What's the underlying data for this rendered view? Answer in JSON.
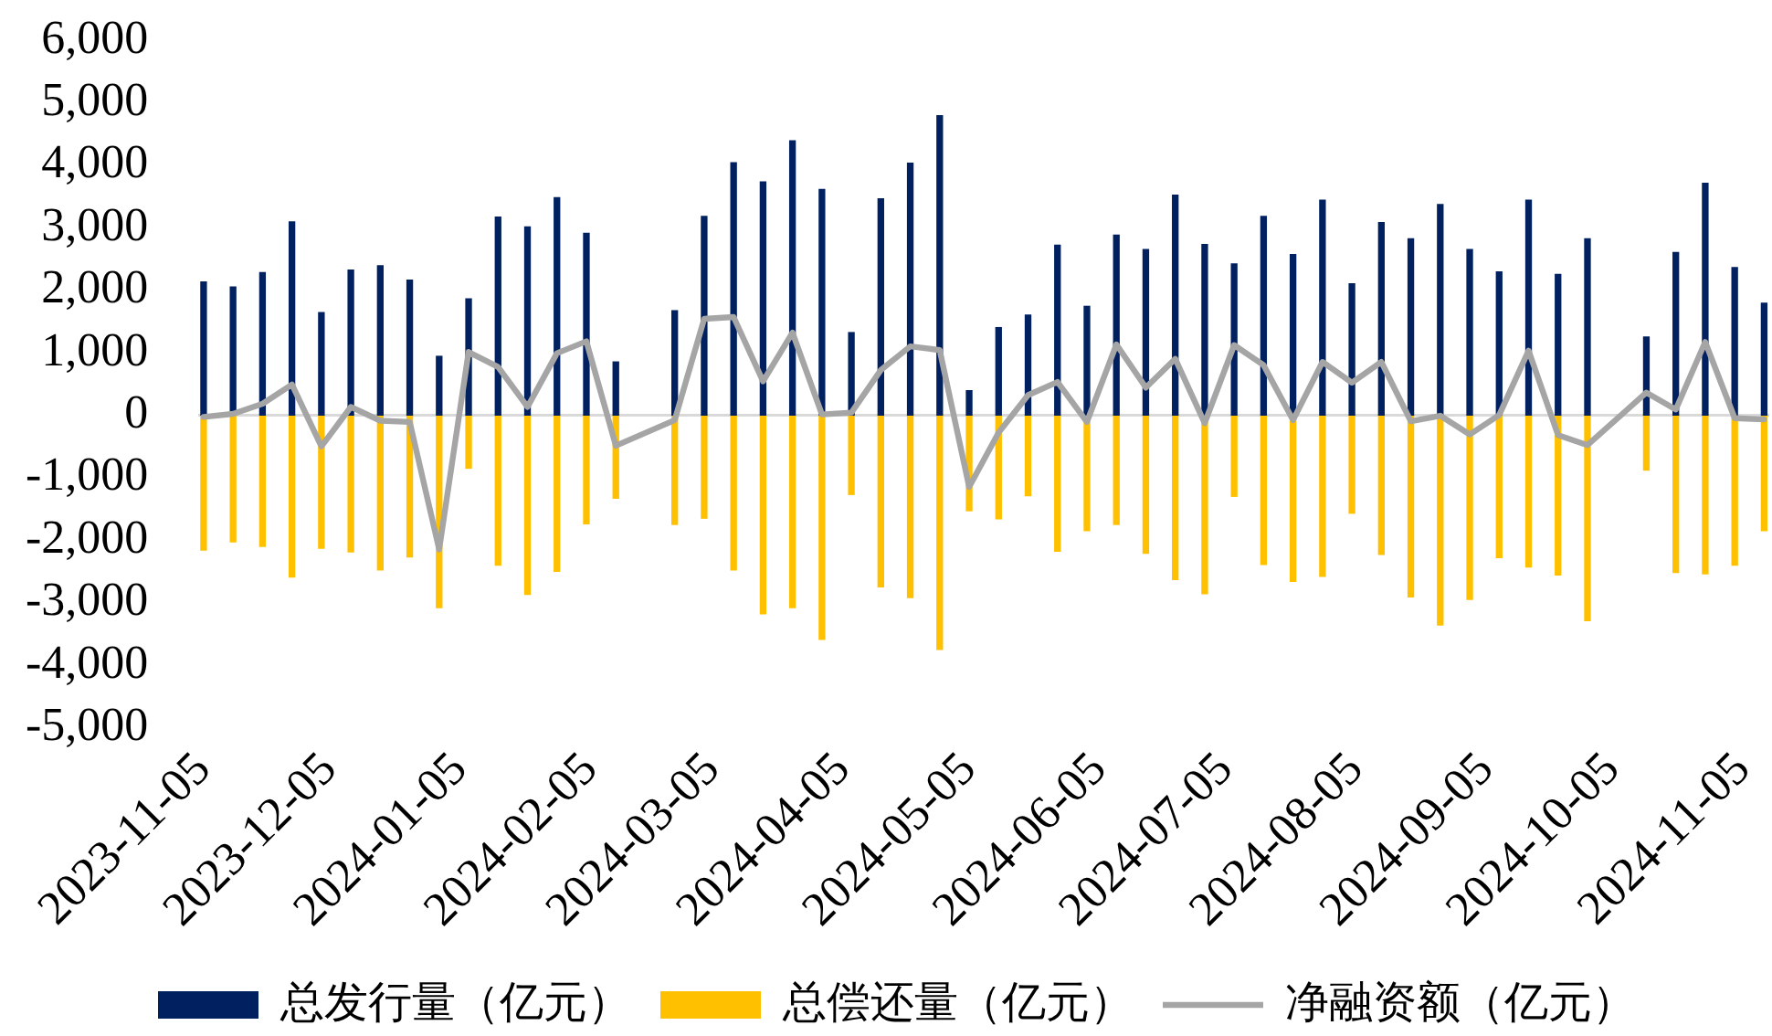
{
  "chart_data": {
    "type": "bar",
    "stacked": true,
    "x": [
      "2023-11-05",
      "2023-11-12",
      "2023-11-19",
      "2023-11-26",
      "2023-12-03",
      "2023-12-10",
      "2023-12-17",
      "2023-12-24",
      "2023-12-31",
      "2024-01-07",
      "2024-01-14",
      "2024-01-21",
      "2024-01-28",
      "2024-02-04",
      "2024-02-11",
      "2024-02-25",
      "2024-03-03",
      "2024-03-10",
      "2024-03-17",
      "2024-03-24",
      "2024-03-31",
      "2024-04-07",
      "2024-04-14",
      "2024-04-21",
      "2024-04-28",
      "2024-05-05",
      "2024-05-12",
      "2024-05-19",
      "2024-05-26",
      "2024-06-02",
      "2024-06-09",
      "2024-06-16",
      "2024-06-23",
      "2024-06-30",
      "2024-07-07",
      "2024-07-14",
      "2024-07-21",
      "2024-07-28",
      "2024-08-04",
      "2024-08-11",
      "2024-08-18",
      "2024-08-25",
      "2024-09-01",
      "2024-09-08",
      "2024-09-15",
      "2024-09-22",
      "2024-09-29",
      "2024-10-13",
      "2024-10-20",
      "2024-10-27",
      "2024-11-03",
      "2024-11-10"
    ],
    "series": [
      {
        "name": "总发行量（亿元）",
        "color": "#002060",
        "values": [
          2130,
          2050,
          2280,
          3090,
          1640,
          2320,
          2390,
          2160,
          940,
          1860,
          3170,
          3010,
          3480,
          2910,
          850,
          1670,
          3180,
          4040,
          3730,
          4390,
          3610,
          1320,
          3460,
          4030,
          4790,
          390,
          1400,
          1600,
          2720,
          1740,
          2880,
          2650,
          3520,
          2730,
          2420,
          3180,
          2570,
          3440,
          2100,
          3080,
          2820,
          3370,
          2650,
          2290,
          3440,
          2250,
          2820,
          1250,
          2600,
          3710,
          2360,
          1790
        ]
      },
      {
        "name": "总偿还量（亿元）",
        "color": "#ffc000",
        "values": [
          -2160,
          -2030,
          -2100,
          -2590,
          -2130,
          -2190,
          -2480,
          -2270,
          -3080,
          -850,
          -2400,
          -2870,
          -2500,
          -1740,
          -1330,
          -1750,
          -1650,
          -2480,
          -3180,
          -3080,
          -3590,
          -1270,
          -2750,
          -2920,
          -3750,
          -1530,
          -1660,
          -1290,
          -2180,
          -1850,
          -1750,
          -2210,
          -2630,
          -2860,
          -1300,
          -2390,
          -2660,
          -2580,
          -1570,
          -2230,
          -2910,
          -3360,
          -2950,
          -2280,
          -2430,
          -2560,
          -3290,
          -880,
          -2520,
          -2540,
          -2400,
          -1850
        ]
      },
      {
        "name": "净融资额（亿元）",
        "type": "line",
        "color": "#a5a5a5",
        "values": [
          -30,
          20,
          180,
          490,
          -500,
          130,
          -90,
          -110,
          -2150,
          1010,
          770,
          130,
          990,
          1180,
          -490,
          -80,
          1540,
          1570,
          540,
          1320,
          10,
          40,
          720,
          1100,
          1040,
          -1150,
          -280,
          320,
          530,
          -110,
          1130,
          440,
          900,
          -130,
          1120,
          800,
          -80,
          850,
          520,
          850,
          -100,
          -10,
          -310,
          0,
          1030,
          -320,
          -480,
          360,
          90,
          1170,
          -50,
          -70
        ]
      }
    ],
    "xlim": [
      "2023-11-04",
      "2024-11-11"
    ],
    "xticks": [
      "2023-11-05",
      "2023-12-05",
      "2024-01-05",
      "2024-02-05",
      "2024-03-05",
      "2024-04-05",
      "2024-05-05",
      "2024-06-05",
      "2024-07-05",
      "2024-08-05",
      "2024-09-05",
      "2024-10-05",
      "2024-11-05"
    ],
    "ylim": [
      -5000,
      6000
    ],
    "yticks": [
      {
        "value": -5000,
        "label": "-5,000"
      },
      {
        "value": -4000,
        "label": "-4,000"
      },
      {
        "value": -3000,
        "label": "-3,000"
      },
      {
        "value": -2000,
        "label": "-2,000"
      },
      {
        "value": -1000,
        "label": "-1,000"
      },
      {
        "value": 0,
        "label": "0"
      },
      {
        "value": 1000,
        "label": "1,000"
      },
      {
        "value": 2000,
        "label": "2,000"
      },
      {
        "value": 3000,
        "label": "3,000"
      },
      {
        "value": 4000,
        "label": "4,000"
      },
      {
        "value": 5000,
        "label": "5,000"
      },
      {
        "value": 6000,
        "label": "6,000"
      }
    ],
    "legend": "bottom"
  }
}
